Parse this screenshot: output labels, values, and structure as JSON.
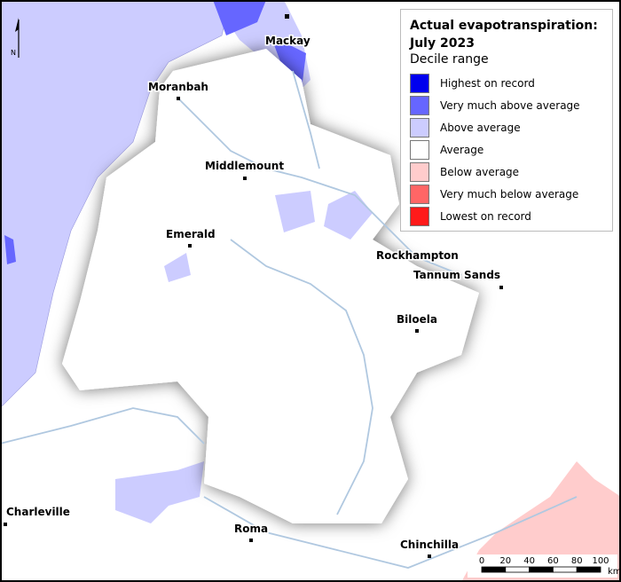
{
  "legend": {
    "title": "Actual evapotranspiration: July 2023",
    "subtitle": "Decile range",
    "items": [
      {
        "label": "Highest on record",
        "color": "#0000ee"
      },
      {
        "label": "Very much above average",
        "color": "#6666ff"
      },
      {
        "label": "Above average",
        "color": "#ccccff"
      },
      {
        "label": "Average",
        "color": "#ffffff"
      },
      {
        "label": "Below average",
        "color": "#ffcccc"
      },
      {
        "label": "Very much below average",
        "color": "#ff6666"
      },
      {
        "label": "Lowest on record",
        "color": "#ff1a1a"
      }
    ]
  },
  "towns": [
    "Mackay",
    "Moranbah",
    "Middlemount",
    "Emerald",
    "Rockhampton",
    "Tannum Sands",
    "Biloela",
    "Charleville",
    "Roma",
    "Chinchilla"
  ],
  "north": "N",
  "scale": {
    "ticks": [
      "0",
      "20",
      "40",
      "60",
      "80",
      "100"
    ],
    "unit": "km"
  }
}
